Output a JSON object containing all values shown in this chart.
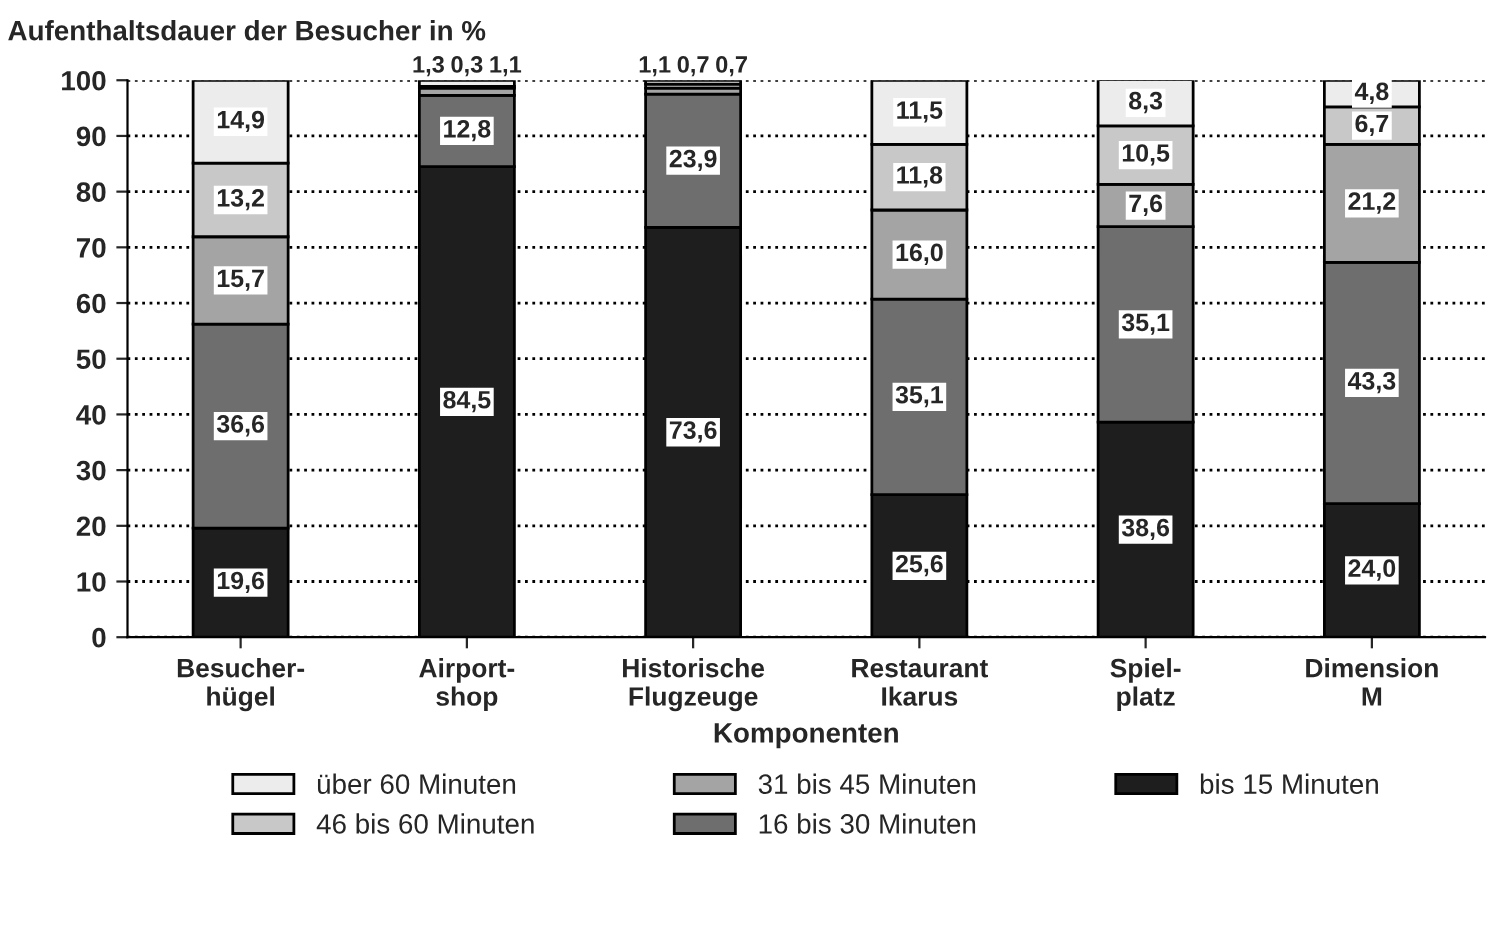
{
  "chart_data": {
    "type": "bar",
    "stacked": true,
    "title": "Aufenthaltsdauer der Besucher in %",
    "xlabel": "Komponenten",
    "categories": [
      "Besucher-\nhügel",
      "Airport-\nshop",
      "Historische\nFlugzeuge",
      "Restaurant\nIkarus",
      "Spiel-\nplatz",
      "Dimension\nM"
    ],
    "series": [
      {
        "name": "bis 15 Minuten",
        "color": "#1e1e1e",
        "values": [
          19.6,
          84.5,
          73.6,
          25.6,
          38.6,
          24.0
        ],
        "value_labels": [
          "19,6",
          "84,5",
          "73,6",
          "25,6",
          "38,6",
          "24,0"
        ]
      },
      {
        "name": "16 bis 30 Minuten",
        "color": "#6e6e6e",
        "values": [
          36.6,
          12.8,
          23.9,
          35.1,
          35.1,
          43.3
        ],
        "value_labels": [
          "36,6",
          "12,8",
          "23,9",
          "35,1",
          "35,1",
          "43,3"
        ]
      },
      {
        "name": "31 bis 45 Minuten",
        "color": "#a4a4a4",
        "values": [
          15.7,
          1.3,
          1.1,
          16.0,
          7.6,
          21.2
        ],
        "value_labels": [
          "15,7",
          "1,3",
          "1,1",
          "16,0",
          "7,6",
          "21,2"
        ]
      },
      {
        "name": "46 bis 60 Minuten",
        "color": "#c8c8c8",
        "values": [
          13.2,
          0.3,
          0.7,
          11.8,
          10.5,
          6.7
        ],
        "value_labels": [
          "13,2",
          "0,3",
          "0,7",
          "11,8",
          "10,5",
          "6,7"
        ]
      },
      {
        "name": "über 60 Minuten",
        "color": "#ececec",
        "values": [
          14.9,
          1.1,
          0.7,
          11.5,
          8.3,
          4.8
        ],
        "value_labels": [
          "14,9",
          "1,1",
          "0,7",
          "11,5",
          "8,3",
          "4,8"
        ]
      }
    ],
    "ylim": [
      0,
      100
    ],
    "yticks": [
      0,
      10,
      20,
      30,
      40,
      50,
      60,
      70,
      80,
      90,
      100
    ],
    "grid": "y",
    "legend": "bottom"
  }
}
